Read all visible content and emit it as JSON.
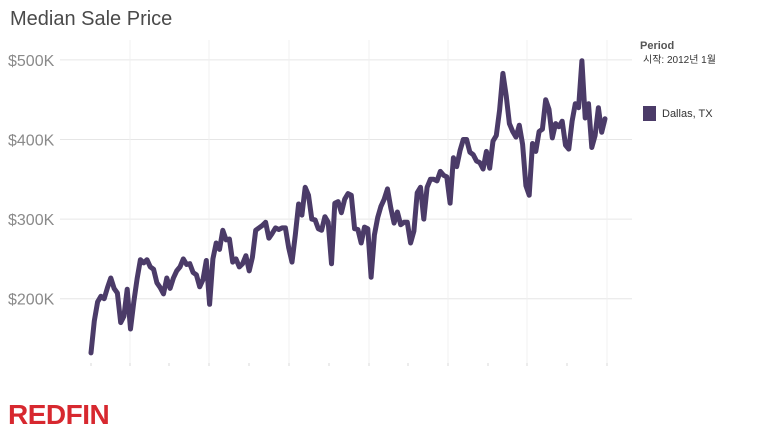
{
  "brand": {
    "logo_text": "REDFIN",
    "logo_color": "#d7282f"
  },
  "legend": {
    "title": "Period",
    "subtitle": "시작: 2012년 1월"
  },
  "chart_data": {
    "type": "line",
    "title": "Median Sale Price",
    "xlabel": "",
    "ylabel": "",
    "ylim": [
      118000,
      525000
    ],
    "yticks": [
      200000,
      300000,
      400000,
      500000
    ],
    "ytick_labels": [
      "$200K",
      "$300K",
      "$400K",
      "$500K"
    ],
    "grid": true,
    "legend_position": "right",
    "series": [
      {
        "name": "Dallas, TX",
        "color": "#4b3b68",
        "values": [
          132000,
          172000,
          196000,
          203000,
          200000,
          214000,
          226000,
          213000,
          207000,
          170000,
          178000,
          212000,
          162000,
          196000,
          225000,
          249000,
          245000,
          249000,
          240000,
          237000,
          220000,
          214000,
          206000,
          226000,
          213000,
          226000,
          235000,
          240000,
          250000,
          243000,
          244000,
          233000,
          230000,
          215000,
          224000,
          248000,
          193000,
          250000,
          270000,
          262000,
          286000,
          274000,
          275000,
          246000,
          250000,
          240000,
          244000,
          254000,
          235000,
          252000,
          286000,
          289000,
          292000,
          296000,
          276000,
          282000,
          289000,
          287000,
          289000,
          289000,
          264000,
          246000,
          280000,
          319000,
          305000,
          340000,
          330000,
          300000,
          299000,
          288000,
          286000,
          303000,
          296000,
          244000,
          320000,
          322000,
          308000,
          325000,
          332000,
          330000,
          288000,
          287000,
          270000,
          290000,
          288000,
          227000,
          280000,
          302000,
          316000,
          325000,
          338000,
          314000,
          295000,
          309000,
          293000,
          296000,
          296000,
          270000,
          285000,
          333000,
          340000,
          300000,
          340000,
          350000,
          350000,
          348000,
          360000,
          355000,
          353000,
          320000,
          377000,
          366000,
          386000,
          400000,
          400000,
          384000,
          381000,
          373000,
          371000,
          363000,
          385000,
          364000,
          398000,
          405000,
          437000,
          483000,
          455000,
          420000,
          410000,
          403000,
          418000,
          394000,
          342000,
          330000,
          395000,
          385000,
          410000,
          413000,
          450000,
          438000,
          402000,
          420000,
          416000,
          423000,
          393000,
          388000,
          423000,
          445000,
          440000,
          499000,
          427000,
          445000,
          390000,
          405000,
          440000,
          409000,
          426000
        ]
      }
    ]
  }
}
